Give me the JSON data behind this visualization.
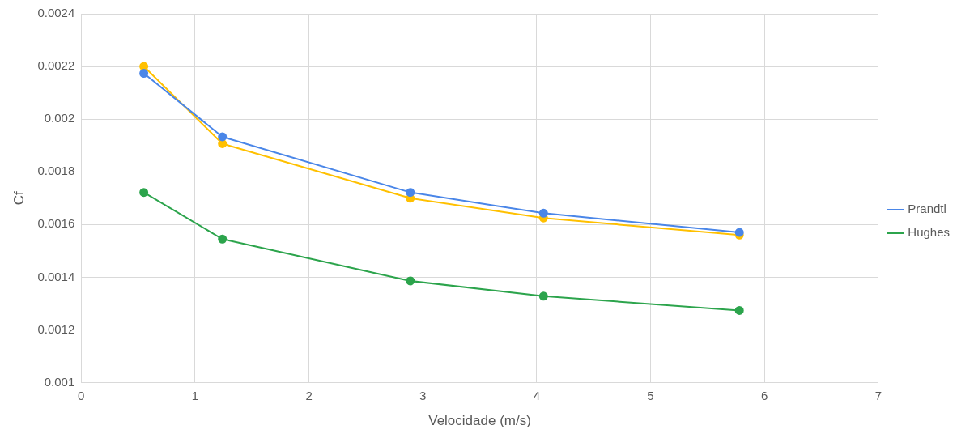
{
  "chart_data": {
    "type": "line",
    "xlabel": "Velocidade (m/s)",
    "ylabel": "Cf",
    "x": [
      0.55,
      1.24,
      2.89,
      4.06,
      5.78
    ],
    "series": [
      {
        "color": "#ffc000",
        "values": [
          0.0022,
          0.001907,
          0.0017,
          0.001625,
          0.00156
        ]
      },
      {
        "name": "Hughes",
        "color": "#2ca44c",
        "values": [
          0.001722,
          0.001545,
          0.001386,
          0.001328,
          0.001274
        ]
      },
      {
        "name": "Prandtl",
        "color": "#4a86e8",
        "values": [
          0.002174,
          0.001933,
          0.001722,
          0.001643,
          0.00157
        ]
      }
    ],
    "xlim": [
      0,
      7
    ],
    "xticks": [
      0,
      1,
      2,
      3,
      4,
      5,
      6,
      7
    ],
    "ylim": [
      0.001,
      0.0024
    ],
    "yticks": [
      0.001,
      0.0012,
      0.0014,
      0.0016,
      0.0018,
      0.002,
      0.0022,
      0.0024
    ],
    "grid": true,
    "legend": "right",
    "marker": "circle",
    "line_style": "solid"
  }
}
